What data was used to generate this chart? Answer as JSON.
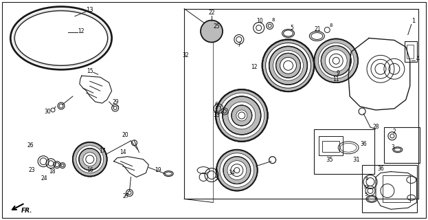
{
  "bg_color": "#ffffff",
  "line_color": "#1a1a1a",
  "figsize": [
    6.23,
    3.2
  ],
  "dpi": 100,
  "gray": "#888888",
  "lgray": "#bbbbbb",
  "dgray": "#444444"
}
